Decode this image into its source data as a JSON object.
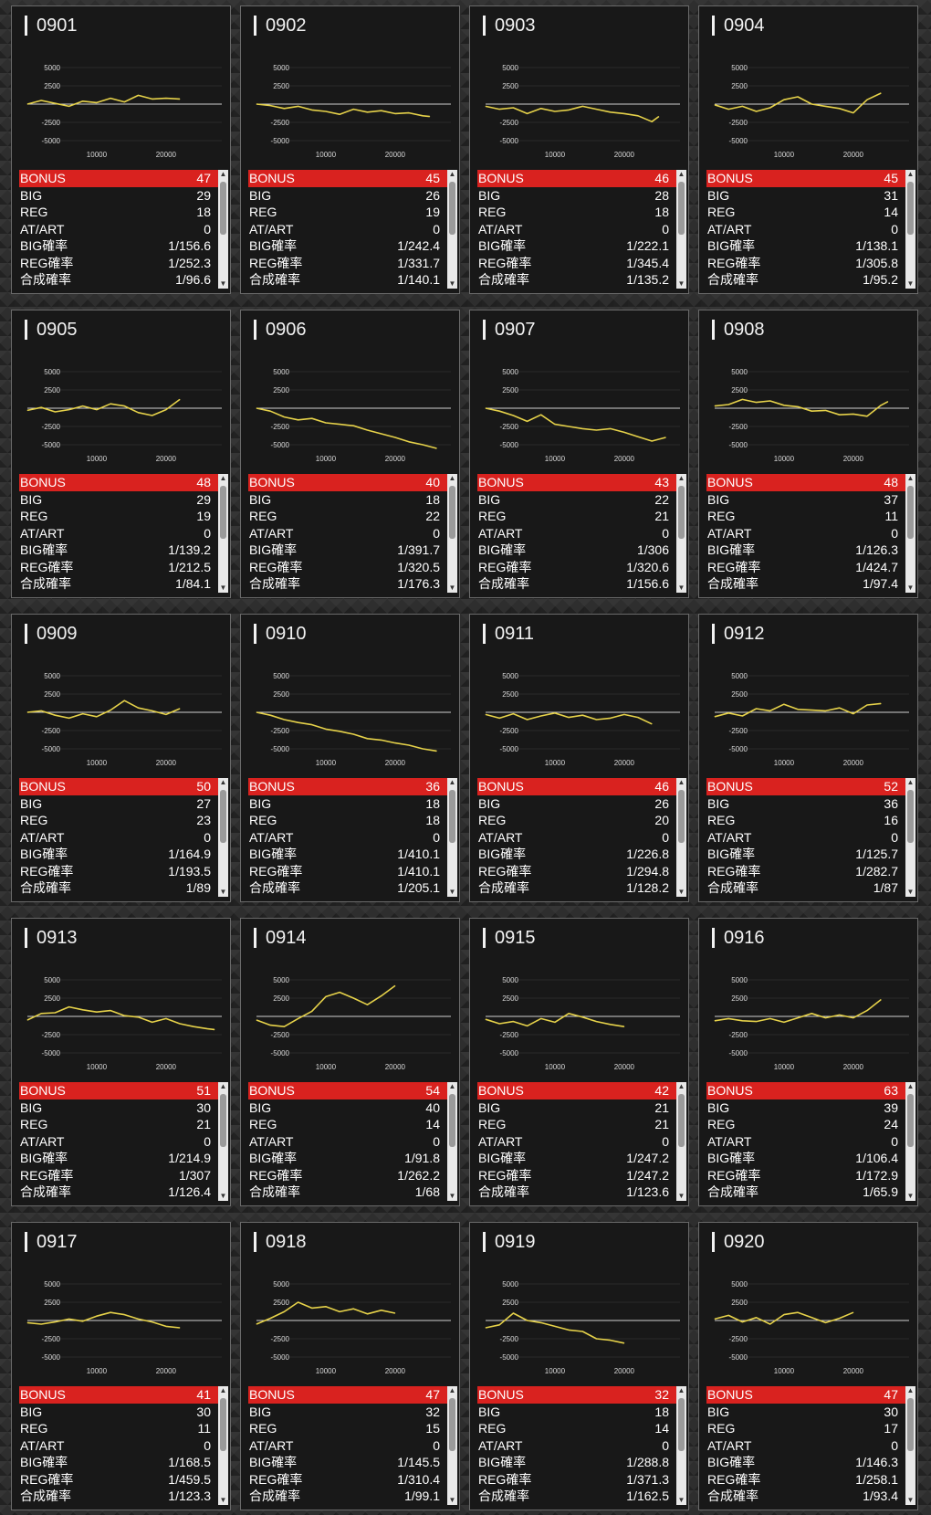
{
  "labels": {
    "bonus": "BONUS",
    "big": "BIG",
    "reg": "REG",
    "atart": "AT/ART",
    "big_rate": "BIG確率",
    "reg_rate": "REG確率",
    "total_rate": "合成確率",
    "scroll_up": "▲",
    "scroll_down": "▼"
  },
  "chart_axis": {
    "y_ticks": [
      "5000",
      "2500",
      "-2500",
      "-5000"
    ],
    "x_ticks": [
      "10000",
      "20000"
    ],
    "ylim": [
      -6000,
      6000
    ],
    "xlim": [
      0,
      27000
    ]
  },
  "colors": {
    "line": "#e6d24a",
    "bonus_bar": "#d9221f",
    "grid": "#555555"
  },
  "machines": [
    {
      "id": "0901",
      "bonus": "47",
      "big": "29",
      "reg": "18",
      "atart": "0",
      "big_rate": "1/156.6",
      "reg_rate": "1/252.3",
      "total_rate": "1/96.6"
    },
    {
      "id": "0902",
      "bonus": "45",
      "big": "26",
      "reg": "19",
      "atart": "0",
      "big_rate": "1/242.4",
      "reg_rate": "1/331.7",
      "total_rate": "1/140.1"
    },
    {
      "id": "0903",
      "bonus": "46",
      "big": "28",
      "reg": "18",
      "atart": "0",
      "big_rate": "1/222.1",
      "reg_rate": "1/345.4",
      "total_rate": "1/135.2"
    },
    {
      "id": "0904",
      "bonus": "45",
      "big": "31",
      "reg": "14",
      "atart": "0",
      "big_rate": "1/138.1",
      "reg_rate": "1/305.8",
      "total_rate": "1/95.2"
    },
    {
      "id": "0905",
      "bonus": "48",
      "big": "29",
      "reg": "19",
      "atart": "0",
      "big_rate": "1/139.2",
      "reg_rate": "1/212.5",
      "total_rate": "1/84.1"
    },
    {
      "id": "0906",
      "bonus": "40",
      "big": "18",
      "reg": "22",
      "atart": "0",
      "big_rate": "1/391.7",
      "reg_rate": "1/320.5",
      "total_rate": "1/176.3"
    },
    {
      "id": "0907",
      "bonus": "43",
      "big": "22",
      "reg": "21",
      "atart": "0",
      "big_rate": "1/306",
      "reg_rate": "1/320.6",
      "total_rate": "1/156.6"
    },
    {
      "id": "0908",
      "bonus": "48",
      "big": "37",
      "reg": "11",
      "atart": "0",
      "big_rate": "1/126.3",
      "reg_rate": "1/424.7",
      "total_rate": "1/97.4"
    },
    {
      "id": "0909",
      "bonus": "50",
      "big": "27",
      "reg": "23",
      "atart": "0",
      "big_rate": "1/164.9",
      "reg_rate": "1/193.5",
      "total_rate": "1/89"
    },
    {
      "id": "0910",
      "bonus": "36",
      "big": "18",
      "reg": "18",
      "atart": "0",
      "big_rate": "1/410.1",
      "reg_rate": "1/410.1",
      "total_rate": "1/205.1"
    },
    {
      "id": "0911",
      "bonus": "46",
      "big": "26",
      "reg": "20",
      "atart": "0",
      "big_rate": "1/226.8",
      "reg_rate": "1/294.8",
      "total_rate": "1/128.2"
    },
    {
      "id": "0912",
      "bonus": "52",
      "big": "36",
      "reg": "16",
      "atart": "0",
      "big_rate": "1/125.7",
      "reg_rate": "1/282.7",
      "total_rate": "1/87"
    },
    {
      "id": "0913",
      "bonus": "51",
      "big": "30",
      "reg": "21",
      "atart": "0",
      "big_rate": "1/214.9",
      "reg_rate": "1/307",
      "total_rate": "1/126.4"
    },
    {
      "id": "0914",
      "bonus": "54",
      "big": "40",
      "reg": "14",
      "atart": "0",
      "big_rate": "1/91.8",
      "reg_rate": "1/262.2",
      "total_rate": "1/68"
    },
    {
      "id": "0915",
      "bonus": "42",
      "big": "21",
      "reg": "21",
      "atart": "0",
      "big_rate": "1/247.2",
      "reg_rate": "1/247.2",
      "total_rate": "1/123.6"
    },
    {
      "id": "0916",
      "bonus": "63",
      "big": "39",
      "reg": "24",
      "atart": "0",
      "big_rate": "1/106.4",
      "reg_rate": "1/172.9",
      "total_rate": "1/65.9"
    },
    {
      "id": "0917",
      "bonus": "41",
      "big": "30",
      "reg": "11",
      "atart": "0",
      "big_rate": "1/168.5",
      "reg_rate": "1/459.5",
      "total_rate": "1/123.3"
    },
    {
      "id": "0918",
      "bonus": "47",
      "big": "32",
      "reg": "15",
      "atart": "0",
      "big_rate": "1/145.5",
      "reg_rate": "1/310.4",
      "total_rate": "1/99.1"
    },
    {
      "id": "0919",
      "bonus": "32",
      "big": "18",
      "reg": "14",
      "atart": "0",
      "big_rate": "1/288.8",
      "reg_rate": "1/371.3",
      "total_rate": "1/162.5"
    },
    {
      "id": "0920",
      "bonus": "47",
      "big": "30",
      "reg": "17",
      "atart": "0",
      "big_rate": "1/146.3",
      "reg_rate": "1/258.1",
      "total_rate": "1/93.4"
    }
  ],
  "chart_data": [
    {
      "type": "line",
      "x": [
        0,
        2000,
        4000,
        6000,
        8000,
        10000,
        12000,
        14000,
        16000,
        18000,
        20000,
        22000
      ],
      "y": [
        0,
        500,
        100,
        -300,
        400,
        200,
        800,
        300,
        1200,
        700,
        800,
        700
      ]
    },
    {
      "type": "line",
      "x": [
        0,
        2000,
        4000,
        6000,
        8000,
        10000,
        12000,
        14000,
        16000,
        18000,
        20000,
        22000,
        24000,
        25000
      ],
      "y": [
        0,
        -200,
        -600,
        -300,
        -800,
        -1000,
        -1400,
        -700,
        -1100,
        -900,
        -1300,
        -1200,
        -1600,
        -1700
      ]
    },
    {
      "type": "line",
      "x": [
        0,
        2000,
        4000,
        6000,
        8000,
        10000,
        12000,
        14000,
        16000,
        18000,
        20000,
        22000,
        24000,
        25000
      ],
      "y": [
        -300,
        -700,
        -500,
        -1300,
        -600,
        -1000,
        -800,
        -300,
        -700,
        -1100,
        -1300,
        -1600,
        -2400,
        -1700
      ]
    },
    {
      "type": "line",
      "x": [
        0,
        2000,
        4000,
        6000,
        8000,
        10000,
        12000,
        14000,
        16000,
        18000,
        20000,
        22000,
        24000
      ],
      "y": [
        -100,
        -700,
        -300,
        -1000,
        -500,
        600,
        1000,
        0,
        -300,
        -600,
        -1200,
        600,
        1500
      ]
    },
    {
      "type": "line",
      "x": [
        0,
        2000,
        4000,
        6000,
        8000,
        10000,
        12000,
        14000,
        16000,
        18000,
        20000,
        22000
      ],
      "y": [
        -300,
        100,
        -500,
        -200,
        300,
        -200,
        600,
        300,
        -600,
        -1000,
        -200,
        1200
      ]
    },
    {
      "type": "line",
      "x": [
        0,
        2000,
        4000,
        6000,
        8000,
        10000,
        12000,
        14000,
        16000,
        18000,
        20000,
        22000,
        24000,
        26000
      ],
      "y": [
        0,
        -400,
        -1200,
        -1600,
        -1400,
        -2000,
        -2200,
        -2400,
        -3000,
        -3500,
        -4000,
        -4600,
        -5000,
        -5500
      ]
    },
    {
      "type": "line",
      "x": [
        0,
        2000,
        4000,
        6000,
        8000,
        10000,
        12000,
        14000,
        16000,
        18000,
        20000,
        22000,
        24000,
        26000
      ],
      "y": [
        0,
        -400,
        -1000,
        -1800,
        -900,
        -2200,
        -2500,
        -2800,
        -3000,
        -2800,
        -3300,
        -3900,
        -4500,
        -4000
      ]
    },
    {
      "type": "line",
      "x": [
        0,
        2000,
        4000,
        6000,
        8000,
        10000,
        12000,
        14000,
        16000,
        18000,
        20000,
        22000,
        24000,
        25000
      ],
      "y": [
        300,
        500,
        1200,
        800,
        1000,
        400,
        200,
        -400,
        -300,
        -900,
        -800,
        -1100,
        400,
        900
      ]
    },
    {
      "type": "line",
      "x": [
        0,
        2000,
        4000,
        6000,
        8000,
        10000,
        12000,
        14000,
        16000,
        18000,
        20000,
        22000
      ],
      "y": [
        0,
        200,
        -400,
        -800,
        -200,
        -600,
        300,
        1600,
        600,
        200,
        -300,
        500
      ]
    },
    {
      "type": "line",
      "x": [
        0,
        2000,
        4000,
        6000,
        8000,
        10000,
        12000,
        14000,
        16000,
        18000,
        20000,
        22000,
        24000,
        26000
      ],
      "y": [
        0,
        -400,
        -1000,
        -1400,
        -1700,
        -2300,
        -2600,
        -3000,
        -3600,
        -3800,
        -4200,
        -4500,
        -5000,
        -5300
      ]
    },
    {
      "type": "line",
      "x": [
        0,
        2000,
        4000,
        6000,
        8000,
        10000,
        12000,
        14000,
        16000,
        18000,
        20000,
        22000,
        24000
      ],
      "y": [
        -300,
        -800,
        -200,
        -1000,
        -500,
        -100,
        -700,
        -400,
        -1000,
        -800,
        -300,
        -700,
        -1600
      ]
    },
    {
      "type": "line",
      "x": [
        0,
        2000,
        4000,
        6000,
        8000,
        10000,
        12000,
        14000,
        16000,
        18000,
        20000,
        22000,
        24000
      ],
      "y": [
        -600,
        -100,
        -500,
        500,
        200,
        1100,
        400,
        300,
        200,
        600,
        -200,
        1000,
        1200
      ]
    },
    {
      "type": "line",
      "x": [
        0,
        2000,
        4000,
        6000,
        8000,
        10000,
        12000,
        14000,
        16000,
        18000,
        20000,
        22000,
        24000,
        26000,
        27000
      ],
      "y": [
        -500,
        400,
        500,
        1300,
        900,
        600,
        800,
        100,
        -100,
        -800,
        -300,
        -1000,
        -1400,
        -1700,
        -1800
      ]
    },
    {
      "type": "line",
      "x": [
        0,
        2000,
        4000,
        6000,
        8000,
        10000,
        12000,
        14000,
        16000,
        18000,
        20000
      ],
      "y": [
        -500,
        -1200,
        -1400,
        -300,
        700,
        2700,
        3300,
        2500,
        1600,
        2800,
        4200
      ]
    },
    {
      "type": "line",
      "x": [
        0,
        2000,
        4000,
        6000,
        8000,
        10000,
        12000,
        14000,
        16000,
        18000,
        20000
      ],
      "y": [
        -400,
        -1000,
        -700,
        -1300,
        -300,
        -800,
        400,
        -100,
        -700,
        -1100,
        -1400
      ]
    },
    {
      "type": "line",
      "x": [
        0,
        2000,
        4000,
        6000,
        8000,
        10000,
        12000,
        14000,
        16000,
        18000,
        20000,
        22000,
        24000
      ],
      "y": [
        -600,
        -300,
        -600,
        -700,
        -300,
        -800,
        -200,
        400,
        -200,
        200,
        -200,
        800,
        2300
      ]
    },
    {
      "type": "line",
      "x": [
        0,
        2000,
        4000,
        6000,
        8000,
        10000,
        12000,
        14000,
        16000,
        18000,
        20000,
        22000
      ],
      "y": [
        -300,
        -500,
        -200,
        200,
        -100,
        600,
        1100,
        800,
        200,
        -200,
        -800,
        -1000
      ]
    },
    {
      "type": "line",
      "x": [
        0,
        2000,
        4000,
        6000,
        8000,
        10000,
        12000,
        14000,
        16000,
        18000,
        20000
      ],
      "y": [
        -500,
        300,
        1200,
        2500,
        1700,
        1900,
        1200,
        1600,
        900,
        1400,
        1000
      ]
    },
    {
      "type": "line",
      "x": [
        0,
        2000,
        4000,
        6000,
        8000,
        10000,
        12000,
        14000,
        16000,
        18000,
        20000
      ],
      "y": [
        -1000,
        -600,
        1000,
        0,
        -300,
        -800,
        -1300,
        -1500,
        -2500,
        -2700,
        -3100
      ]
    },
    {
      "type": "line",
      "x": [
        0,
        2000,
        4000,
        6000,
        8000,
        10000,
        12000,
        14000,
        16000,
        18000,
        20000
      ],
      "y": [
        200,
        700,
        -200,
        400,
        -500,
        800,
        1100,
        400,
        -300,
        300,
        1100
      ]
    }
  ]
}
